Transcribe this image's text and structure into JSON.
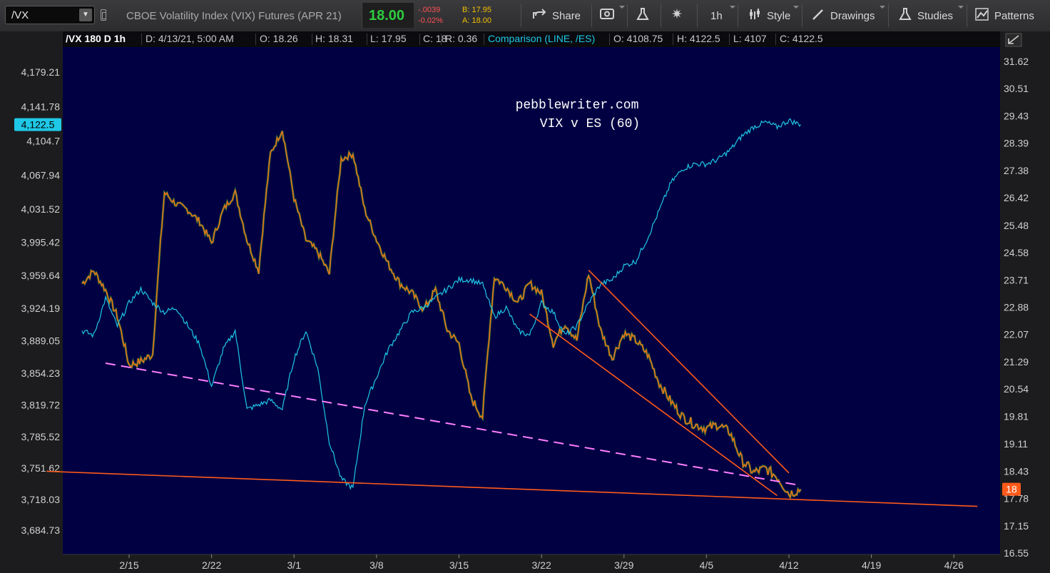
{
  "toolbar": {
    "symbol": "/VX",
    "description": "CBOE Volatility Index (VIX) Futures (APR 21)",
    "last": "18.00",
    "change": "-.0039",
    "change_pct": "-0.02%",
    "bid": "B: 17.95",
    "ask": "A: 18.00",
    "share": "Share",
    "interval": "1h",
    "style": "Style",
    "drawings": "Drawings",
    "studies": "Studies",
    "patterns": "Patterns",
    "icons": [
      "share-icon",
      "screenshot-icon",
      "flask-icon",
      "gear-icon",
      "style-icon",
      "pencil-icon",
      "studies-icon",
      "patterns-icon"
    ]
  },
  "info": {
    "symbol": "/VX 180 D 1h",
    "date": "D: 4/13/21, 5:00 AM",
    "open": "O: 18.26",
    "high": "H: 18.31",
    "low": "L: 17.95",
    "close": "C: 18",
    "range": "R: 0.36",
    "comparison": "Comparison (LINE, /ES)",
    "c_open": "O: 4108.75",
    "c_high": "H: 4122.5",
    "c_low": "L: 4107",
    "c_close": "C: 4122.5"
  },
  "chart_data": {
    "type": "line",
    "annotation": [
      "pebblewriter.com",
      "VIX v ES (60)"
    ],
    "x_ticks": [
      "2/15",
      "2/22",
      "3/1",
      "3/8",
      "3/15",
      "3/22",
      "3/29",
      "4/5",
      "4/12",
      "4/19",
      "4/26"
    ],
    "left_axis": {
      "ticks": [
        4179.21,
        4141.78,
        4104.7,
        4067.94,
        4031.52,
        3995.42,
        3959.64,
        3924.19,
        3889.05,
        3854.23,
        3819.72,
        3785.52,
        3751.62,
        3718.03,
        3684.73
      ],
      "current": "4,122.5"
    },
    "right_axis": {
      "ticks": [
        31.62,
        30.51,
        29.43,
        28.39,
        27.38,
        26.42,
        25.48,
        24.58,
        23.71,
        22.88,
        22.07,
        21.29,
        20.54,
        19.81,
        19.11,
        18.43,
        17.78,
        17.15,
        16.55
      ],
      "current": "18"
    },
    "series": [
      {
        "name": "/VX",
        "axis": "right",
        "color": "#e8701a",
        "points": [
          [
            "2/11",
            23.6
          ],
          [
            "2/12",
            24.0
          ],
          [
            "2/13",
            23.4
          ],
          [
            "2/14",
            22.6
          ],
          [
            "2/15",
            21.2
          ],
          [
            "2/16",
            21.3
          ],
          [
            "2/17",
            21.5
          ],
          [
            "2/18",
            26.6
          ],
          [
            "2/19",
            26.2
          ],
          [
            "2/20",
            26.0
          ],
          [
            "2/21",
            25.6
          ],
          [
            "2/22",
            24.9
          ],
          [
            "2/23",
            26.0
          ],
          [
            "2/24",
            26.6
          ],
          [
            "2/25",
            25.0
          ],
          [
            "2/26",
            24.0
          ],
          [
            "2/27",
            28.0
          ],
          [
            "2/28",
            28.9
          ],
          [
            "3/1",
            26.4
          ],
          [
            "3/2",
            25.0
          ],
          [
            "3/3",
            24.6
          ],
          [
            "3/4",
            23.9
          ],
          [
            "3/5",
            27.8
          ],
          [
            "3/6",
            28.0
          ],
          [
            "3/7",
            26.0
          ],
          [
            "3/8",
            25.0
          ],
          [
            "3/9",
            24.2
          ],
          [
            "3/10",
            23.6
          ],
          [
            "3/11",
            23.3
          ],
          [
            "3/12",
            22.8
          ],
          [
            "3/13",
            23.4
          ],
          [
            "3/14",
            22.2
          ],
          [
            "3/15",
            21.8
          ],
          [
            "3/16",
            20.3
          ],
          [
            "3/17",
            19.8
          ],
          [
            "3/18",
            23.8
          ],
          [
            "3/19",
            23.5
          ],
          [
            "3/20",
            23.0
          ],
          [
            "3/21",
            23.6
          ],
          [
            "3/22",
            23.3
          ],
          [
            "3/23",
            21.8
          ],
          [
            "3/24",
            22.4
          ],
          [
            "3/25",
            21.9
          ],
          [
            "3/26",
            23.9
          ],
          [
            "3/27",
            22.2
          ],
          [
            "3/28",
            21.4
          ],
          [
            "3/29",
            22.1
          ],
          [
            "3/30",
            21.9
          ],
          [
            "3/31",
            21.5
          ],
          [
            "4/1",
            20.7
          ],
          [
            "4/2",
            20.2
          ],
          [
            "4/3",
            19.8
          ],
          [
            "4/4",
            19.6
          ],
          [
            "4/5",
            19.5
          ],
          [
            "4/6",
            19.6
          ],
          [
            "4/7",
            19.4
          ],
          [
            "4/8",
            18.7
          ],
          [
            "4/9",
            18.4
          ],
          [
            "4/10",
            18.5
          ],
          [
            "4/11",
            18.3
          ],
          [
            "4/12",
            17.9
          ],
          [
            "4/13",
            18.0
          ]
        ]
      },
      {
        "name": "/ES",
        "axis": "left",
        "color": "#1fc8e6",
        "points": [
          [
            "2/11",
            3900
          ],
          [
            "2/12",
            3895
          ],
          [
            "2/13",
            3935
          ],
          [
            "2/14",
            3905
          ],
          [
            "2/15",
            3930
          ],
          [
            "2/16",
            3945
          ],
          [
            "2/17",
            3930
          ],
          [
            "2/18",
            3920
          ],
          [
            "2/19",
            3925
          ],
          [
            "2/20",
            3905
          ],
          [
            "2/21",
            3885
          ],
          [
            "2/22",
            3840
          ],
          [
            "2/23",
            3880
          ],
          [
            "2/24",
            3900
          ],
          [
            "2/25",
            3815
          ],
          [
            "2/26",
            3820
          ],
          [
            "2/27",
            3825
          ],
          [
            "2/28",
            3815
          ],
          [
            "3/1",
            3870
          ],
          [
            "3/2",
            3900
          ],
          [
            "3/3",
            3860
          ],
          [
            "3/4",
            3780
          ],
          [
            "3/5",
            3740
          ],
          [
            "3/6",
            3730
          ],
          [
            "3/7",
            3820
          ],
          [
            "3/8",
            3850
          ],
          [
            "3/9",
            3880
          ],
          [
            "3/10",
            3900
          ],
          [
            "3/11",
            3920
          ],
          [
            "3/12",
            3925
          ],
          [
            "3/13",
            3935
          ],
          [
            "3/14",
            3945
          ],
          [
            "3/15",
            3955
          ],
          [
            "3/16",
            3955
          ],
          [
            "3/17",
            3950
          ],
          [
            "3/18",
            3915
          ],
          [
            "3/19",
            3925
          ],
          [
            "3/20",
            3900
          ],
          [
            "3/21",
            3895
          ],
          [
            "3/22",
            3930
          ],
          [
            "3/23",
            3920
          ],
          [
            "3/24",
            3895
          ],
          [
            "3/25",
            3905
          ],
          [
            "3/26",
            3930
          ],
          [
            "3/27",
            3950
          ],
          [
            "3/28",
            3955
          ],
          [
            "3/29",
            3970
          ],
          [
            "3/30",
            3975
          ],
          [
            "3/31",
            4000
          ],
          [
            "4/1",
            4030
          ],
          [
            "4/2",
            4060
          ],
          [
            "4/3",
            4075
          ],
          [
            "4/4",
            4080
          ],
          [
            "4/5",
            4080
          ],
          [
            "4/6",
            4085
          ],
          [
            "4/7",
            4095
          ],
          [
            "4/8",
            4110
          ],
          [
            "4/9",
            4120
          ],
          [
            "4/10",
            4125
          ],
          [
            "4/11",
            4120
          ],
          [
            "4/12",
            4127
          ],
          [
            "4/13",
            4122.5
          ]
        ]
      }
    ],
    "trendlines": [
      {
        "name": "dashed-support",
        "color": "#ff7eff",
        "style": "dashed",
        "axis": "right",
        "from": [
          "2/13",
          21.25
        ],
        "to": [
          "4/13",
          18.09
        ]
      },
      {
        "name": "channel-upper",
        "color": "#ff5a1a",
        "style": "solid",
        "axis": "right",
        "from": [
          "3/26",
          24.02
        ],
        "to": [
          "4/12",
          18.39
        ]
      },
      {
        "name": "channel-lower",
        "color": "#ff5a1a",
        "style": "solid",
        "axis": "right",
        "from": [
          "3/21",
          22.67
        ],
        "to": [
          "4/11",
          17.85
        ]
      },
      {
        "name": "long-support",
        "color": "#ff5a1a",
        "style": "solid",
        "axis": "right",
        "from": [
          "2/8",
          18.43
        ],
        "to": [
          "4/28",
          17.6
        ]
      }
    ],
    "grid": false
  }
}
